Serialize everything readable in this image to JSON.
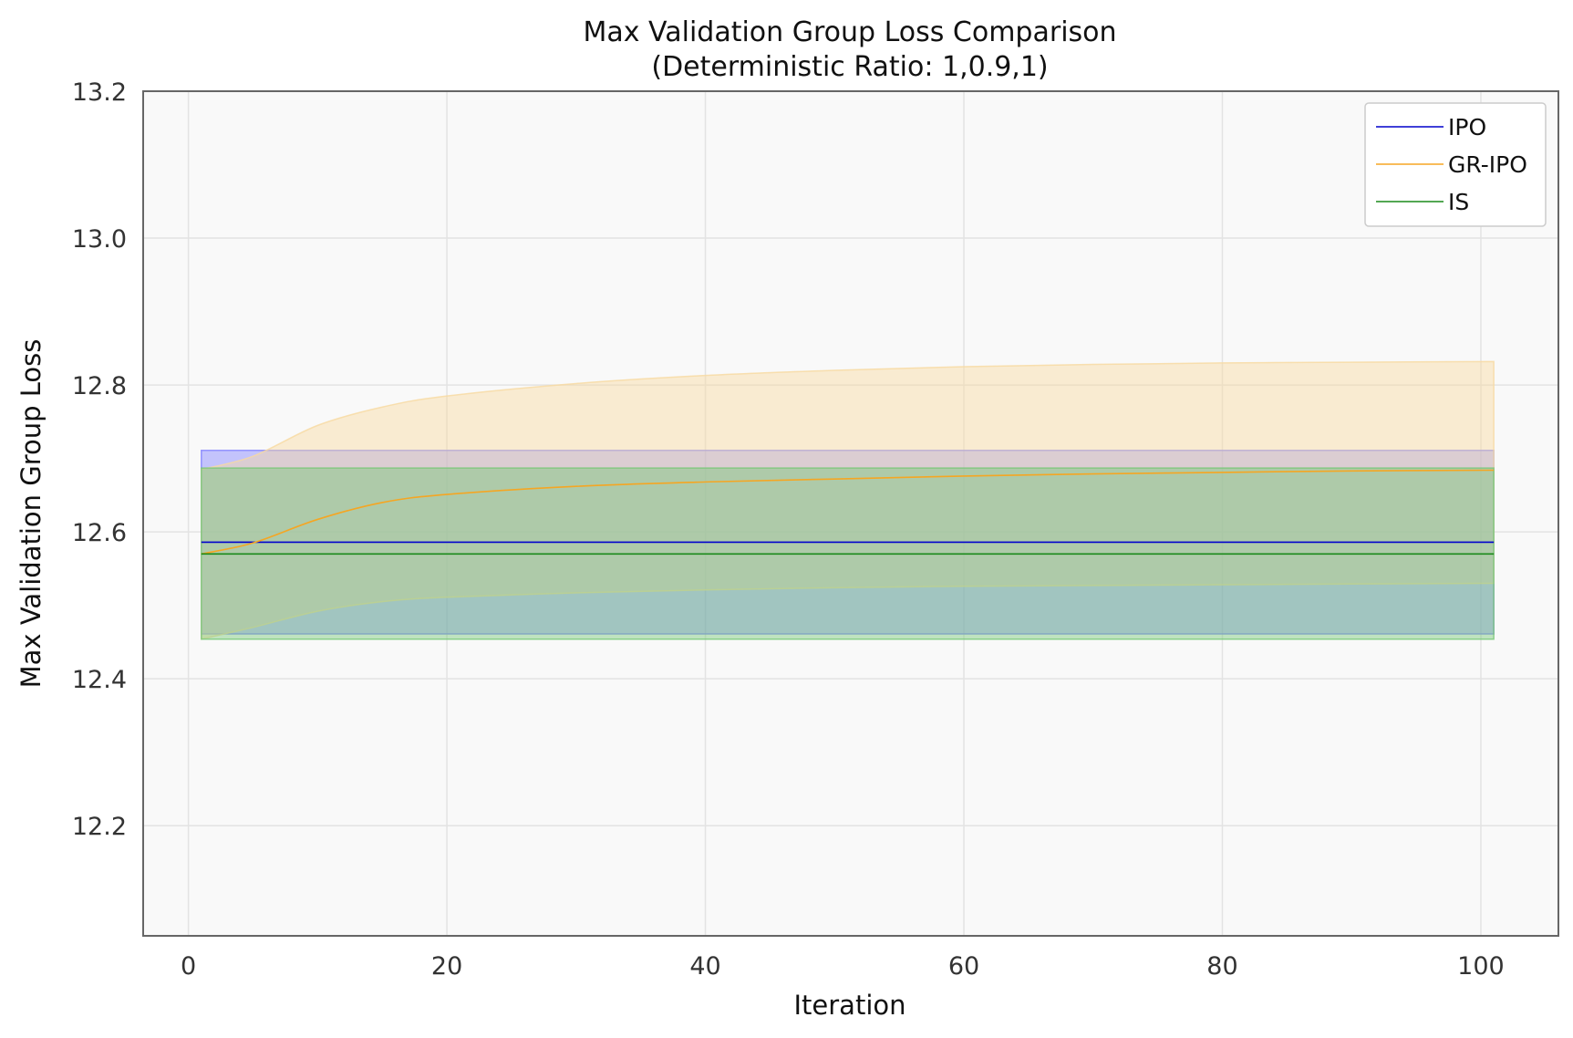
{
  "chart_data": {
    "type": "line",
    "title": "Max Validation Group Loss Comparison",
    "subtitle": "(Deterministic Ratio: 1,0.9,1)",
    "xlabel": "Iteration",
    "ylabel": "Max Validation Group Loss",
    "xlim": [
      -3.5,
      106
    ],
    "ylim": [
      12.05,
      13.2
    ],
    "xticks": [
      0,
      20,
      40,
      60,
      80,
      100
    ],
    "yticks": [
      12.2,
      12.4,
      12.6,
      12.8,
      13.0,
      13.2
    ],
    "xtick_labels": [
      "0",
      "20",
      "40",
      "60",
      "80",
      "100"
    ],
    "ytick_labels": [
      "12.2",
      "12.4",
      "12.6",
      "12.8",
      "13.0",
      "13.2"
    ],
    "grid": true,
    "legend_position": "top-right",
    "x": [
      1,
      5,
      10,
      15,
      20,
      30,
      40,
      50,
      60,
      70,
      80,
      90,
      101
    ],
    "series": [
      {
        "name": "IPO",
        "color": "#0000cc",
        "band_color": "#8080ff",
        "mean": [
          12.586,
          12.586,
          12.586,
          12.586,
          12.586,
          12.586,
          12.586,
          12.586,
          12.586,
          12.586,
          12.586,
          12.586,
          12.586
        ],
        "lower": [
          12.461,
          12.461,
          12.461,
          12.461,
          12.461,
          12.461,
          12.461,
          12.461,
          12.461,
          12.461,
          12.461,
          12.461,
          12.461
        ],
        "upper": [
          12.711,
          12.711,
          12.711,
          12.711,
          12.711,
          12.711,
          12.711,
          12.711,
          12.711,
          12.711,
          12.711,
          12.711,
          12.711
        ]
      },
      {
        "name": "GR-IPO",
        "color": "#f5a623",
        "band_color": "#f8d9a0",
        "mean": [
          12.57,
          12.585,
          12.617,
          12.64,
          12.651,
          12.662,
          12.668,
          12.672,
          12.676,
          12.679,
          12.681,
          12.683,
          12.684
        ],
        "lower": [
          12.454,
          12.47,
          12.492,
          12.505,
          12.511,
          12.517,
          12.521,
          12.524,
          12.526,
          12.527,
          12.528,
          12.529,
          12.53
        ],
        "upper": [
          12.685,
          12.703,
          12.745,
          12.77,
          12.785,
          12.802,
          12.813,
          12.82,
          12.825,
          12.828,
          12.83,
          12.831,
          12.832
        ]
      },
      {
        "name": "IS",
        "color": "#1a8a1a",
        "band_color": "#77c777",
        "mean": [
          12.57,
          12.57,
          12.57,
          12.57,
          12.57,
          12.57,
          12.57,
          12.57,
          12.57,
          12.57,
          12.57,
          12.57,
          12.57
        ],
        "lower": [
          12.454,
          12.454,
          12.454,
          12.454,
          12.454,
          12.454,
          12.454,
          12.454,
          12.454,
          12.454,
          12.454,
          12.454,
          12.454
        ],
        "upper": [
          12.687,
          12.687,
          12.687,
          12.687,
          12.687,
          12.687,
          12.687,
          12.687,
          12.687,
          12.687,
          12.687,
          12.687,
          12.687
        ]
      }
    ]
  }
}
